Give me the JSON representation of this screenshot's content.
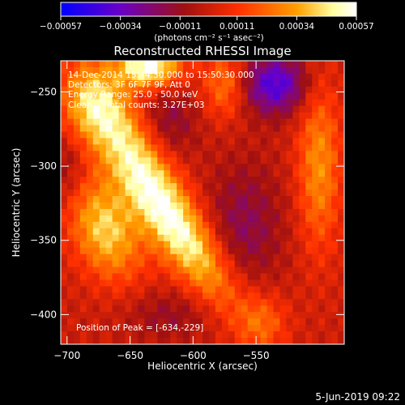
{
  "chart_data": {
    "type": "heatmap",
    "title": "Reconstructed RHESSI Image",
    "xlabel": "Heliocentric X (arcsec)",
    "ylabel": "Heliocentric Y (arcsec)",
    "xlim": [
      -705,
      -480
    ],
    "ylim": [
      -420,
      -229
    ],
    "x_ticks": [
      -700,
      -650,
      -600,
      -550
    ],
    "x_tick_labels": [
      "−700",
      "−650",
      "−600",
      "−550"
    ],
    "y_ticks": [
      -250,
      -300,
      -350,
      -400
    ],
    "y_tick_labels": [
      "−250",
      "−300",
      "−350",
      "−400"
    ],
    "colorbar": {
      "range": [
        -0.00057,
        0.00057
      ],
      "ticks": [
        -0.00057,
        -0.00034,
        -0.00011,
        0.00011,
        0.00034,
        0.00057
      ],
      "tick_labels": [
        "−0.00057",
        "−0.00034",
        "−0.00011",
        "0.00011",
        "0.00034",
        "0.00057"
      ],
      "unit_text": "(photons cm⁻² s⁻¹ asec⁻²)",
      "colors": [
        "#0000ff",
        "#6a00c8",
        "#a01010",
        "#ff3000",
        "#ffa000",
        "#ffffa0",
        "#ffffff"
      ]
    },
    "annotations": [
      "14-Dec-2014 15:44:30.000 to 15:50:30.000",
      "Detectors: 3F 6F 7F 9F, Att 0",
      "Energy Range: 25.0 - 50.0 keV",
      "Clean     Total counts: 3.27E+03"
    ],
    "peak_text": "Position of Peak = [-634,-229]",
    "grid": false,
    "features": [
      {
        "x": -635,
        "y": -233,
        "sx": 18,
        "sy": 10,
        "amp": 0.00057
      },
      {
        "x": -648,
        "y": -292,
        "sx": 16,
        "sy": 42,
        "rot": 35,
        "amp": 0.0004
      },
      {
        "x": -682,
        "y": -260,
        "sx": 18,
        "sy": 20,
        "amp": 0.0003
      },
      {
        "x": -605,
        "y": -350,
        "sx": 14,
        "sy": 42,
        "rot": 40,
        "amp": 0.00044
      },
      {
        "x": -670,
        "y": -342,
        "sx": 18,
        "sy": 26,
        "rot": 30,
        "amp": 0.00042
      },
      {
        "x": -575,
        "y": -245,
        "sx": 12,
        "sy": 16,
        "amp": 0.00025
      },
      {
        "x": -500,
        "y": -300,
        "sx": 12,
        "sy": 40,
        "amp": 0.0003
      },
      {
        "x": -545,
        "y": -405,
        "sx": 14,
        "sy": 14,
        "amp": 0.0002
      },
      {
        "x": -535,
        "y": -245,
        "sx": 18,
        "sy": 14,
        "amp": -0.0004
      },
      {
        "x": -560,
        "y": -340,
        "sx": 22,
        "sy": 30,
        "amp": -0.00018
      },
      {
        "x": -620,
        "y": -270,
        "sx": 16,
        "sy": 18,
        "amp": -0.00016
      },
      {
        "x": -700,
        "y": -300,
        "sx": 12,
        "sy": 20,
        "amp": -0.00014
      },
      {
        "x": -620,
        "y": -400,
        "sx": 25,
        "sy": 12,
        "amp": -0.00012
      }
    ]
  },
  "footer": {
    "date": "5-Jun-2019 09:22"
  }
}
